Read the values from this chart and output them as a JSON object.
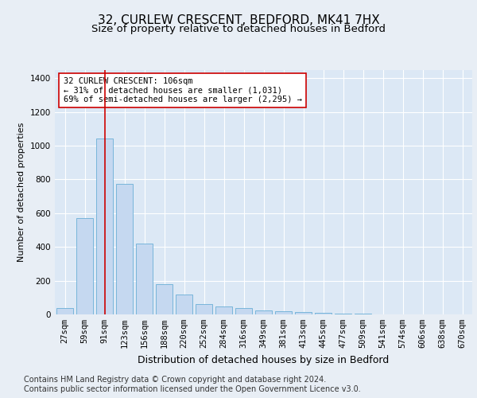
{
  "title1": "32, CURLEW CRESCENT, BEDFORD, MK41 7HX",
  "title2": "Size of property relative to detached houses in Bedford",
  "xlabel": "Distribution of detached houses by size in Bedford",
  "ylabel": "Number of detached properties",
  "footer1": "Contains HM Land Registry data © Crown copyright and database right 2024.",
  "footer2": "Contains public sector information licensed under the Open Government Licence v3.0.",
  "bar_labels": [
    "27sqm",
    "59sqm",
    "91sqm",
    "123sqm",
    "156sqm",
    "188sqm",
    "220sqm",
    "252sqm",
    "284sqm",
    "316sqm",
    "349sqm",
    "381sqm",
    "413sqm",
    "445sqm",
    "477sqm",
    "509sqm",
    "541sqm",
    "574sqm",
    "606sqm",
    "638sqm",
    "670sqm"
  ],
  "bar_values": [
    40,
    570,
    1040,
    775,
    420,
    180,
    120,
    60,
    45,
    40,
    25,
    20,
    15,
    10,
    5,
    3,
    2,
    2,
    1,
    1,
    1
  ],
  "bar_color": "#c5d8f0",
  "bar_edge_color": "#6aaed6",
  "vline_x": 2,
  "vline_color": "#cc0000",
  "annotation_text": "32 CURLEW CRESCENT: 106sqm\n← 31% of detached houses are smaller (1,031)\n69% of semi-detached houses are larger (2,295) →",
  "annotation_box_color": "#ffffff",
  "annotation_box_edge": "#cc0000",
  "ylim": [
    0,
    1450
  ],
  "yticks": [
    0,
    200,
    400,
    600,
    800,
    1000,
    1200,
    1400
  ],
  "background_color": "#e8eef5",
  "plot_background": "#dce8f5",
  "grid_color": "#ffffff",
  "title1_fontsize": 11,
  "title2_fontsize": 9.5,
  "xlabel_fontsize": 9,
  "ylabel_fontsize": 8,
  "footer_fontsize": 7,
  "tick_fontsize": 7.5,
  "annotation_fontsize": 7.5
}
